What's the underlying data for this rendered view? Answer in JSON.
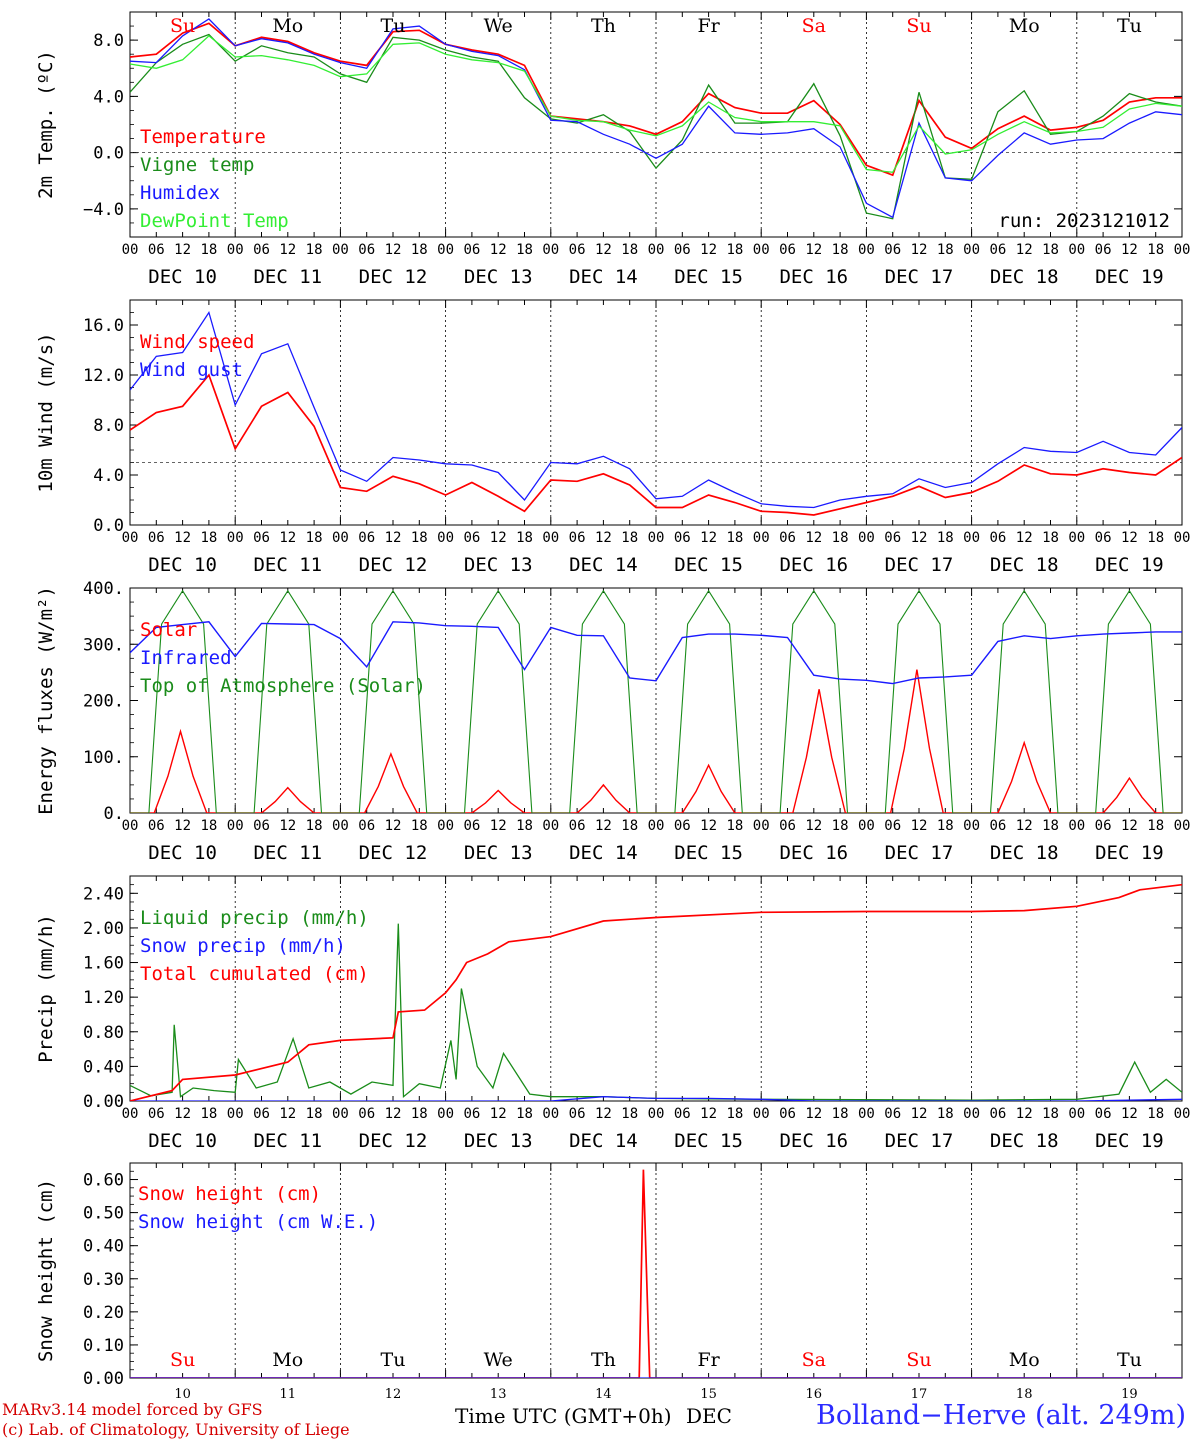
{
  "axis": {
    "hour_ticks": [
      "00",
      "06",
      "12",
      "18"
    ],
    "end_tick": "00",
    "dates": [
      "DEC 10",
      "DEC 11",
      "DEC 12",
      "DEC 13",
      "DEC 14",
      "DEC 15",
      "DEC 16",
      "DEC 17",
      "DEC 18",
      "DEC 19"
    ],
    "weekdays": [
      "Su",
      "Mo",
      "Tu",
      "We",
      "Th",
      "Fr",
      "Sa",
      "Su",
      "Mo",
      "Tu"
    ],
    "weekend_flags": [
      true,
      false,
      false,
      false,
      false,
      false,
      true,
      true,
      false,
      false
    ],
    "day_numbers": [
      "10",
      "11",
      "12",
      "13",
      "14",
      "15",
      "16",
      "17",
      "18",
      "19"
    ]
  },
  "colors": {
    "red": "#ff0000",
    "green": "#1a8c1a",
    "blue": "#1a1aff",
    "lightgreen": "#33ee33",
    "weekend": "#ff0000",
    "weekday": "#000000"
  },
  "chart_data": [
    {
      "type": "line",
      "ylabel": "2m Temp. (ºC)",
      "ylim": [
        -6,
        10
      ],
      "yticks": [
        8.0,
        4.0,
        0.0,
        -4.0
      ],
      "ytick_labels": [
        "8.0",
        "4.0",
        "0.0",
        "−4.0"
      ],
      "ref_line": 0,
      "annotation": "run: 2023121012",
      "x_days": [
        0,
        0.25,
        0.5,
        0.75,
        1,
        1.25,
        1.5,
        1.75,
        2,
        2.25,
        2.5,
        2.75,
        3,
        3.25,
        3.5,
        3.75,
        4,
        4.25,
        4.5,
        4.75,
        5,
        5.25,
        5.5,
        5.75,
        6,
        6.25,
        6.5,
        6.75,
        7,
        7.25,
        7.5,
        7.75,
        8,
        8.25,
        8.5,
        8.75,
        9,
        9.25,
        9.5,
        9.75,
        10
      ],
      "series": [
        {
          "name": "Temperature",
          "color": "red",
          "values": [
            6.8,
            7.0,
            8.5,
            9.2,
            7.6,
            8.2,
            7.9,
            7.1,
            6.5,
            6.2,
            8.6,
            8.7,
            7.7,
            7.3,
            7.0,
            6.2,
            2.6,
            2.4,
            2.2,
            1.9,
            1.3,
            2.2,
            4.2,
            3.2,
            2.8,
            2.8,
            3.7,
            2.0,
            -0.9,
            -1.6,
            3.7,
            1.1,
            0.3,
            1.7,
            2.6,
            1.6,
            1.8,
            2.3,
            3.6,
            3.9,
            3.9
          ]
        },
        {
          "name": "Vigne temp",
          "color": "green",
          "values": [
            4.3,
            6.4,
            7.7,
            8.4,
            6.5,
            7.6,
            7.1,
            6.8,
            5.6,
            5.0,
            8.2,
            8.0,
            7.3,
            6.8,
            6.5,
            3.9,
            2.4,
            2.1,
            2.7,
            1.5,
            -1.1,
            0.9,
            4.8,
            2.1,
            2.1,
            2.2,
            4.9,
            1.2,
            -4.3,
            -4.7,
            4.3,
            -1.8,
            -1.9,
            2.9,
            4.4,
            1.3,
            1.5,
            2.6,
            4.2,
            3.6,
            3.3
          ]
        },
        {
          "name": "Humidex",
          "color": "blue",
          "values": [
            6.5,
            6.4,
            8.3,
            9.5,
            7.6,
            8.1,
            7.8,
            7.0,
            6.4,
            6.0,
            8.8,
            9.0,
            7.7,
            7.2,
            6.9,
            5.9,
            2.3,
            2.2,
            1.3,
            0.6,
            -0.4,
            0.6,
            3.3,
            1.4,
            1.3,
            1.4,
            1.7,
            0.4,
            -3.6,
            -4.6,
            2.1,
            -1.8,
            -2.0,
            -0.2,
            1.4,
            0.6,
            0.9,
            1.0,
            2.1,
            2.9,
            2.7
          ]
        },
        {
          "name": "DewPoint Temp",
          "color": "lightgreen",
          "values": [
            6.3,
            6.0,
            6.6,
            8.3,
            6.8,
            6.9,
            6.6,
            6.2,
            5.4,
            5.6,
            7.7,
            7.8,
            7.0,
            6.6,
            6.4,
            5.8,
            2.6,
            2.3,
            2.2,
            1.6,
            1.2,
            1.9,
            3.6,
            2.5,
            2.2,
            2.2,
            2.2,
            1.9,
            -1.2,
            -1.4,
            1.9,
            -0.1,
            0.2,
            1.3,
            2.2,
            1.4,
            1.5,
            1.8,
            3.1,
            3.5,
            3.3
          ]
        }
      ]
    },
    {
      "type": "line",
      "ylabel": "10m Wind (m/s)",
      "ylim": [
        0,
        18
      ],
      "yticks": [
        16.0,
        12.0,
        8.0,
        4.0,
        0.0
      ],
      "ytick_labels": [
        "16.0",
        "12.0",
        "8.0",
        "4.0",
        "0.0"
      ],
      "ref_line": 5,
      "x_days": [
        0,
        0.25,
        0.5,
        0.75,
        1,
        1.25,
        1.5,
        1.75,
        2,
        2.25,
        2.5,
        2.75,
        3,
        3.25,
        3.5,
        3.75,
        4,
        4.25,
        4.5,
        4.75,
        5,
        5.25,
        5.5,
        5.75,
        6,
        6.25,
        6.5,
        6.75,
        7,
        7.25,
        7.5,
        7.75,
        8,
        8.25,
        8.5,
        8.75,
        9,
        9.25,
        9.5,
        9.75,
        10
      ],
      "series": [
        {
          "name": "Wind speed",
          "color": "red",
          "values": [
            7.6,
            9.0,
            9.5,
            12.0,
            6.1,
            9.5,
            10.6,
            7.9,
            3.0,
            2.7,
            3.9,
            3.3,
            2.4,
            3.4,
            2.3,
            1.1,
            3.6,
            3.5,
            4.1,
            3.2,
            1.4,
            1.4,
            2.4,
            1.8,
            1.1,
            1.0,
            0.8,
            1.3,
            1.8,
            2.3,
            3.1,
            2.2,
            2.6,
            3.5,
            4.8,
            4.1,
            4.0,
            4.5,
            4.2,
            4.0,
            5.4
          ]
        },
        {
          "name": "Wind gust",
          "color": "blue",
          "values": [
            10.8,
            13.5,
            13.8,
            17.0,
            9.6,
            13.7,
            14.5,
            9.4,
            4.4,
            3.5,
            5.4,
            5.2,
            4.9,
            4.8,
            4.2,
            2.0,
            5.0,
            4.9,
            5.5,
            4.5,
            2.1,
            2.3,
            3.6,
            2.6,
            1.7,
            1.5,
            1.4,
            2.0,
            2.3,
            2.5,
            3.7,
            3.0,
            3.4,
            4.9,
            6.2,
            5.9,
            5.8,
            6.7,
            5.8,
            5.6,
            7.8
          ]
        }
      ]
    },
    {
      "type": "line",
      "ylabel": "Energy fluxes (W/m²)",
      "ylim": [
        0,
        400
      ],
      "yticks": [
        400,
        300,
        200,
        100,
        0
      ],
      "ytick_labels": [
        "400.",
        "300.",
        "200.",
        "100.",
        "0."
      ],
      "peaks": [
        [
          0.48,
          145
        ],
        [
          1.5,
          45
        ],
        [
          2.48,
          105
        ],
        [
          3.5,
          40
        ],
        [
          4.5,
          50
        ],
        [
          5.5,
          85
        ],
        [
          6.55,
          220
        ],
        [
          7.48,
          255
        ],
        [
          8.5,
          125
        ],
        [
          9.5,
          62
        ]
      ],
      "toa_peak": 395,
      "infrared": {
        "x_days": [
          0,
          0.25,
          0.5,
          0.75,
          1,
          1.25,
          1.5,
          1.75,
          2,
          2.25,
          2.5,
          2.75,
          3,
          3.25,
          3.5,
          3.75,
          4,
          4.25,
          4.5,
          4.75,
          5,
          5.25,
          5.5,
          5.75,
          6,
          6.25,
          6.5,
          6.75,
          7,
          7.25,
          7.5,
          7.75,
          8,
          8.25,
          8.5,
          8.75,
          9,
          9.25,
          9.5,
          9.75,
          10
        ],
        "values": [
          285,
          330,
          335,
          340,
          278,
          337,
          336,
          335,
          310,
          260,
          340,
          338,
          333,
          332,
          330,
          255,
          330,
          316,
          315,
          240,
          235,
          312,
          318,
          318,
          316,
          312,
          245,
          238,
          236,
          230,
          240,
          242,
          245,
          305,
          315,
          310,
          315,
          318,
          320,
          322,
          322
        ]
      },
      "series": [
        {
          "name": "Solar",
          "color": "red"
        },
        {
          "name": "Infrared",
          "color": "blue"
        },
        {
          "name": "Top of Atmosphere (Solar)",
          "color": "green"
        }
      ]
    },
    {
      "type": "line",
      "ylabel": "Precip (mm/h)",
      "ylim": [
        0,
        2.6
      ],
      "yticks": [
        2.4,
        2.0,
        1.6,
        1.2,
        0.8,
        0.4,
        0.0
      ],
      "ytick_labels": [
        "2.40",
        "2.00",
        "1.60",
        "1.20",
        "0.80",
        "0.40",
        "0.00"
      ],
      "series": [
        {
          "name": "Liquid precip (mm/h)",
          "color": "green",
          "x_days": [
            0,
            0.2,
            0.4,
            0.42,
            0.48,
            0.6,
            0.8,
            1.0,
            1.03,
            1.2,
            1.4,
            1.55,
            1.7,
            1.9,
            2.1,
            2.3,
            2.5,
            2.55,
            2.6,
            2.75,
            2.95,
            3.05,
            3.1,
            3.15,
            3.3,
            3.45,
            3.55,
            3.8,
            4.0,
            4.5,
            5.0,
            6.0,
            8.0,
            9.0,
            9.4,
            9.55,
            9.7,
            9.85,
            10
          ],
          "values": [
            0.18,
            0.06,
            0.1,
            0.88,
            0.05,
            0.15,
            0.12,
            0.1,
            0.48,
            0.15,
            0.22,
            0.72,
            0.15,
            0.22,
            0.08,
            0.22,
            0.18,
            2.05,
            0.05,
            0.2,
            0.15,
            0.7,
            0.25,
            1.3,
            0.4,
            0.15,
            0.55,
            0.08,
            0.05,
            0.05,
            0.03,
            0.02,
            0.01,
            0.02,
            0.08,
            0.45,
            0.1,
            0.25,
            0.1
          ]
        },
        {
          "name": "Snow precip (mm/h)",
          "color": "blue",
          "x_days": [
            0,
            4.0,
            4.5,
            5.0,
            5.5,
            6.0,
            6.5,
            8.0,
            9.0,
            10
          ],
          "values": [
            0,
            0,
            0.05,
            0.03,
            0.03,
            0.02,
            0,
            0,
            0,
            0.02
          ]
        },
        {
          "name": "Total cumulated (cm)",
          "color": "red",
          "x_days": [
            0,
            0.4,
            0.5,
            1.0,
            1.5,
            1.7,
            2.0,
            2.5,
            2.55,
            2.8,
            3.0,
            3.1,
            3.2,
            3.4,
            3.6,
            4.0,
            4.5,
            5.0,
            6.0,
            7.0,
            8.0,
            8.5,
            9.0,
            9.4,
            9.6,
            10
          ],
          "values": [
            0.0,
            0.12,
            0.25,
            0.3,
            0.45,
            0.65,
            0.7,
            0.73,
            1.03,
            1.05,
            1.25,
            1.4,
            1.6,
            1.7,
            1.84,
            1.9,
            2.08,
            2.12,
            2.18,
            2.19,
            2.19,
            2.2,
            2.25,
            2.35,
            2.44,
            2.5
          ]
        }
      ]
    },
    {
      "type": "line",
      "ylabel": "Snow height (cm)",
      "ylim": [
        0,
        0.65
      ],
      "yticks": [
        0.6,
        0.5,
        0.4,
        0.3,
        0.2,
        0.1,
        0.0
      ],
      "ytick_labels": [
        "0.60",
        "0.50",
        "0.40",
        "0.30",
        "0.20",
        "0.10",
        "0.00"
      ],
      "xlabel": "Time UTC (GMT+0h)",
      "xlabel_suffix": "DEC",
      "series": [
        {
          "name": "Snow height (cm)",
          "color": "red",
          "x_days": [
            0,
            4.84,
            4.88,
            4.94,
            10
          ],
          "values": [
            0,
            0,
            0.63,
            0,
            0
          ]
        },
        {
          "name": "Snow height (cm W.E.)",
          "color": "blue",
          "x_days": [
            0,
            10
          ],
          "values": [
            0,
            0
          ]
        }
      ]
    }
  ],
  "footer": {
    "credit1": "MARv3.14 model forced by GFS",
    "credit2": "(c) Lab. of Climatology, University of Liege",
    "station": "Bolland−Herve (alt. 249m)"
  }
}
